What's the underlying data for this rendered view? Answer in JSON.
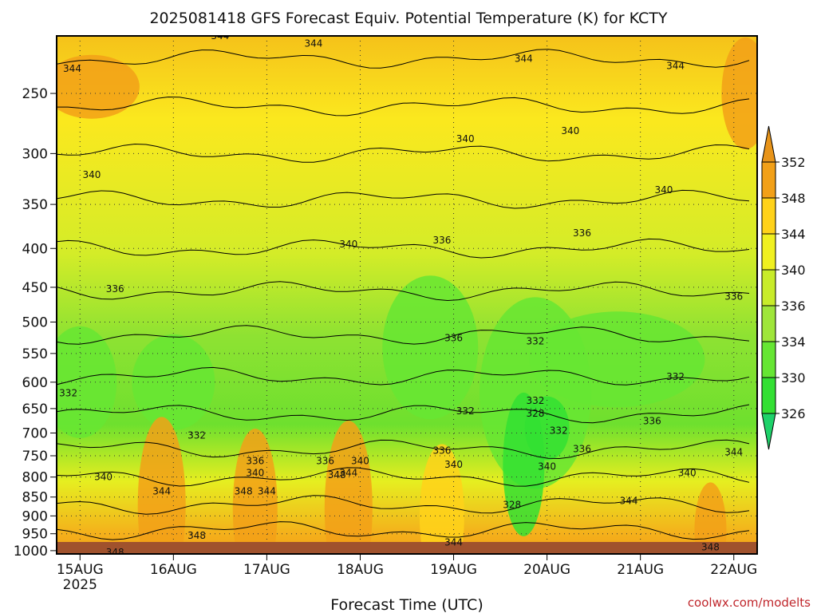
{
  "title": "2025081418 GFS Forecast Equiv. Potential Temperature (K) for KCTY",
  "credit": "coolwx.com/modelts",
  "chart_data": {
    "type": "heatmap",
    "title": "2025081418 GFS Forecast Equiv. Potential Temperature (K) for KCTY",
    "xlabel": "Forecast Time (UTC)",
    "ylabel": "",
    "y_scale": "log",
    "y_inverted": true,
    "ylim": [
      1010,
      210
    ],
    "x_ticks": [
      {
        "label": "15AUG",
        "sub": "2025",
        "x": "2025-08-15T00Z"
      },
      {
        "label": "16AUG",
        "sub": "",
        "x": "2025-08-16T00Z"
      },
      {
        "label": "17AUG",
        "sub": "",
        "x": "2025-08-17T00Z"
      },
      {
        "label": "18AUG",
        "sub": "",
        "x": "2025-08-18T00Z"
      },
      {
        "label": "19AUG",
        "sub": "",
        "x": "2025-08-19T00Z"
      },
      {
        "label": "20AUG",
        "sub": "",
        "x": "2025-08-20T00Z"
      },
      {
        "label": "21AUG",
        "sub": "",
        "x": "2025-08-21T00Z"
      },
      {
        "label": "22AUG",
        "sub": "",
        "x": "2025-08-22T00Z"
      }
    ],
    "xlim": [
      "2025-08-14T18Z",
      "2025-08-22T06Z"
    ],
    "y_ticks": [
      250,
      300,
      350,
      400,
      450,
      500,
      550,
      600,
      650,
      700,
      750,
      800,
      850,
      900,
      950,
      1000
    ],
    "grid": true,
    "colorbar": {
      "levels": [
        326,
        330,
        334,
        336,
        340,
        344,
        348,
        352
      ],
      "colors": [
        "#33e033",
        "#66e633",
        "#9fe63a",
        "#c8ec2a",
        "#f0f020",
        "#ffd21a",
        "#f2a018"
      ],
      "extend_low_color": "#1ed26a",
      "extend_high_color": "#e8941a"
    },
    "contour_labels": [
      {
        "value": 344,
        "x": "2025-08-16T12Z",
        "p": 210
      },
      {
        "value": 344,
        "x": "2025-08-17T12Z",
        "p": 215
      },
      {
        "value": 344,
        "x": "2025-08-14T22Z",
        "p": 232
      },
      {
        "value": 344,
        "x": "2025-08-19T18Z",
        "p": 225
      },
      {
        "value": 344,
        "x": "2025-08-21T09Z",
        "p": 230
      },
      {
        "value": 340,
        "x": "2025-08-19T03Z",
        "p": 287
      },
      {
        "value": 340,
        "x": "2025-08-20T06Z",
        "p": 280
      },
      {
        "value": 340,
        "x": "2025-08-15T03Z",
        "p": 320
      },
      {
        "value": 340,
        "x": "2025-08-21T06Z",
        "p": 335
      },
      {
        "value": 340,
        "x": "2025-08-17T21Z",
        "p": 395
      },
      {
        "value": 336,
        "x": "2025-08-18T21Z",
        "p": 390
      },
      {
        "value": 336,
        "x": "2025-08-20T09Z",
        "p": 382
      },
      {
        "value": 336,
        "x": "2025-08-15T09Z",
        "p": 452
      },
      {
        "value": 336,
        "x": "2025-08-22T00Z",
        "p": 463
      },
      {
        "value": 336,
        "x": "2025-08-19T00Z",
        "p": 525
      },
      {
        "value": 332,
        "x": "2025-08-19T21Z",
        "p": 530
      },
      {
        "value": 332,
        "x": "2025-08-21T09Z",
        "p": 590
      },
      {
        "value": 332,
        "x": "2025-08-14T21Z",
        "p": 620
      },
      {
        "value": 332,
        "x": "2025-08-19T03Z",
        "p": 655
      },
      {
        "value": 332,
        "x": "2025-08-19T21Z",
        "p": 635
      },
      {
        "value": 328,
        "x": "2025-08-19T21Z",
        "p": 660
      },
      {
        "value": 332,
        "x": "2025-08-16T06Z",
        "p": 705
      },
      {
        "value": 332,
        "x": "2025-08-20T03Z",
        "p": 695
      },
      {
        "value": 336,
        "x": "2025-08-20T09Z",
        "p": 735
      },
      {
        "value": 336,
        "x": "2025-08-21T03Z",
        "p": 675
      },
      {
        "value": 336,
        "x": "2025-08-16T21Z",
        "p": 762
      },
      {
        "value": 336,
        "x": "2025-08-17T15Z",
        "p": 762
      },
      {
        "value": 336,
        "x": "2025-08-18T21Z",
        "p": 738
      },
      {
        "value": 340,
        "x": "2025-08-18T00Z",
        "p": 762
      },
      {
        "value": 340,
        "x": "2025-08-16T21Z",
        "p": 790
      },
      {
        "value": 340,
        "x": "2025-08-15T06Z",
        "p": 800
      },
      {
        "value": 340,
        "x": "2025-08-20T00Z",
        "p": 775
      },
      {
        "value": 340,
        "x": "2025-08-21T12Z",
        "p": 790
      },
      {
        "value": 344,
        "x": "2025-08-17T21Z",
        "p": 790
      },
      {
        "value": 344,
        "x": "2025-08-15T21Z",
        "p": 835
      },
      {
        "value": 344,
        "x": "2025-08-17T00Z",
        "p": 835
      },
      {
        "value": 344,
        "x": "2025-08-20T21Z",
        "p": 860
      },
      {
        "value": 344,
        "x": "2025-08-22T00Z",
        "p": 742
      },
      {
        "value": 348,
        "x": "2025-08-16T18Z",
        "p": 835
      },
      {
        "value": 348,
        "x": "2025-08-17T18Z",
        "p": 795
      },
      {
        "value": 348,
        "x": "2025-08-16T06Z",
        "p": 955
      },
      {
        "value": 348,
        "x": "2025-08-15T09Z",
        "p": 1005
      },
      {
        "value": 344,
        "x": "2025-08-19T00Z",
        "p": 975
      },
      {
        "value": 328,
        "x": "2025-08-19T15Z",
        "p": 870
      },
      {
        "value": 348,
        "x": "2025-08-21T18Z",
        "p": 990
      },
      {
        "value": 340,
        "x": "2025-08-19T00Z",
        "p": 770
      }
    ],
    "surface_band": "ground"
  }
}
